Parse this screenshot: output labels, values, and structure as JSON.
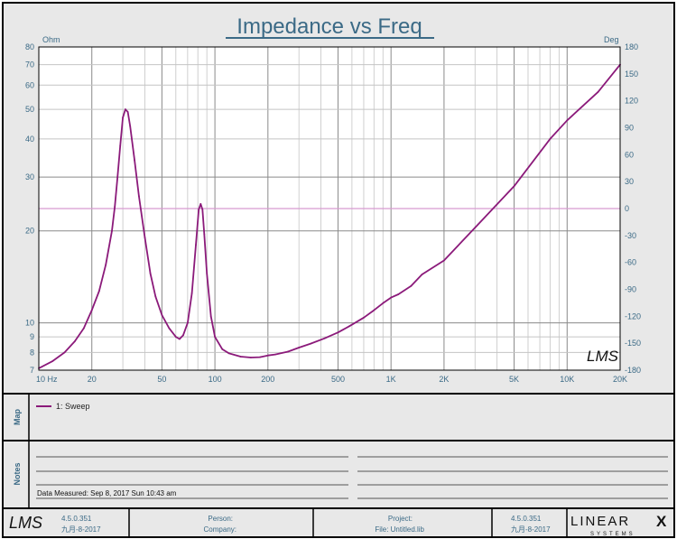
{
  "chart_data": {
    "type": "line",
    "title": "Impedance vs Freq",
    "x_scale": "log",
    "y_scale": "log",
    "xlim": [
      10,
      20000
    ],
    "ylim": [
      7,
      80
    ],
    "y2lim": [
      -180,
      180
    ],
    "y_unit": "Ohm",
    "y2_unit": "Deg",
    "x_ticks": [
      {
        "v": 10,
        "label": "10  Hz"
      },
      {
        "v": 20,
        "label": "20"
      },
      {
        "v": 50,
        "label": "50"
      },
      {
        "v": 100,
        "label": "100"
      },
      {
        "v": 200,
        "label": "200"
      },
      {
        "v": 500,
        "label": "500"
      },
      {
        "v": 1000,
        "label": "1K"
      },
      {
        "v": 2000,
        "label": "2K"
      },
      {
        "v": 5000,
        "label": "5K"
      },
      {
        "v": 10000,
        "label": "10K"
      },
      {
        "v": 20000,
        "label": "20K"
      }
    ],
    "y_ticks": [
      {
        "v": 80,
        "label": "80"
      },
      {
        "v": 70,
        "label": "70"
      },
      {
        "v": 60,
        "label": "60"
      },
      {
        "v": 50,
        "label": "50"
      },
      {
        "v": 40,
        "label": "40"
      },
      {
        "v": 30,
        "label": "30"
      },
      {
        "v": 20,
        "label": "20"
      },
      {
        "v": 10,
        "label": "10"
      },
      {
        "v": 9,
        "label": "9"
      },
      {
        "v": 8,
        "label": "8"
      },
      {
        "v": 7,
        "label": "7"
      }
    ],
    "y2_ticks": [
      180,
      150,
      120,
      90,
      60,
      30,
      0,
      -30,
      -60,
      -90,
      -120,
      -150,
      -180
    ],
    "grid": true,
    "reference_line_y2": 0,
    "series": [
      {
        "name": "1: Sweep",
        "color": "#8b1a7a",
        "x": [
          10,
          12,
          14,
          16,
          18,
          20,
          22,
          24,
          26,
          27,
          28,
          29,
          30,
          31,
          32,
          33,
          35,
          37,
          40,
          43,
          46,
          50,
          55,
          60,
          63,
          66,
          70,
          74,
          78,
          81,
          83,
          85,
          87,
          90,
          95,
          100,
          110,
          120,
          140,
          160,
          180,
          200,
          220,
          260,
          300,
          350,
          420,
          500,
          580,
          700,
          800,
          900,
          1000,
          1100,
          1300,
          1500,
          2000,
          3000,
          5000,
          8000,
          10000,
          15000,
          20000
        ],
        "y": [
          7.1,
          7.5,
          8.0,
          8.7,
          9.6,
          11.0,
          12.7,
          15.5,
          20.0,
          24.0,
          30.0,
          38.0,
          47.0,
          50.0,
          49.0,
          44.0,
          34.0,
          26.0,
          19.0,
          14.5,
          12.2,
          10.6,
          9.6,
          9.0,
          8.85,
          9.1,
          10.0,
          12.5,
          18.0,
          23.5,
          24.5,
          23.5,
          19.5,
          14.5,
          10.5,
          9.0,
          8.2,
          7.95,
          7.75,
          7.7,
          7.72,
          7.82,
          7.88,
          8.05,
          8.3,
          8.55,
          8.9,
          9.3,
          9.75,
          10.4,
          11.0,
          11.6,
          12.1,
          12.4,
          13.2,
          14.4,
          16.0,
          20.5,
          28.0,
          40.0,
          46.0,
          57.0,
          70.0
        ]
      }
    ],
    "watermark": "LMS"
  },
  "map": {
    "label": "Map",
    "legend_entry": "1: Sweep"
  },
  "notes": {
    "label": "Notes",
    "measured": "Data Measured: Sep 8, 2017 Sun 10:43 am"
  },
  "footer": {
    "logo": "LMS",
    "version_left": "4.5.0.351",
    "date_left": "九月-8-2017",
    "person_label": "Person:",
    "company_label": "Company:",
    "project_label": "Project:",
    "file_label": "File: Untitled.lib",
    "version_right": "4.5.0.351",
    "date_right": "九月-8-2017",
    "brand_name": "LINEAR",
    "brand_x": "X",
    "brand_tag": "SYSTEMS"
  }
}
